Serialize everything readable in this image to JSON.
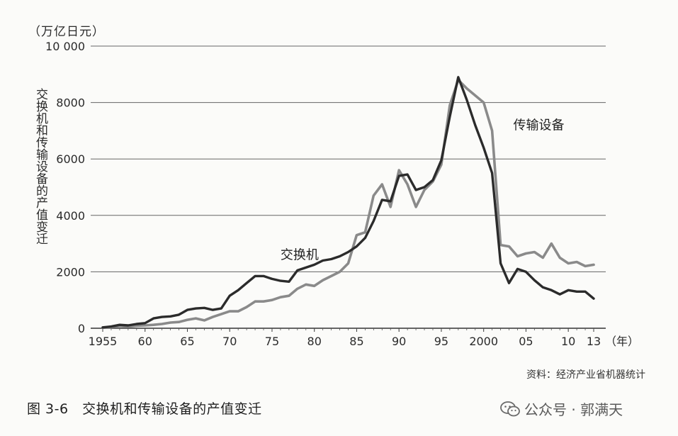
{
  "chart_data": {
    "type": "line",
    "title": "",
    "xlabel": "（年）",
    "ylabel": "交换机和传输设备的产值变迁",
    "unit": "（万亿日元）",
    "ylim": [
      0,
      10000
    ],
    "xlim": [
      1955,
      2013
    ],
    "grid": "horizontal",
    "yticks": [
      {
        "value": 0,
        "label": "0"
      },
      {
        "value": 2000,
        "label": "2000"
      },
      {
        "value": 4000,
        "label": "4000"
      },
      {
        "value": 6000,
        "label": "6000"
      },
      {
        "value": 8000,
        "label": "8000"
      },
      {
        "value": 10000,
        "label": "10 000"
      }
    ],
    "xticks": [
      {
        "value": 1955,
        "label": "1955"
      },
      {
        "value": 1960,
        "label": "60"
      },
      {
        "value": 1965,
        "label": "65"
      },
      {
        "value": 1970,
        "label": "70"
      },
      {
        "value": 1975,
        "label": "75"
      },
      {
        "value": 1980,
        "label": "80"
      },
      {
        "value": 1985,
        "label": "85"
      },
      {
        "value": 1990,
        "label": "90"
      },
      {
        "value": 1995,
        "label": "95"
      },
      {
        "value": 2000,
        "label": "2000"
      },
      {
        "value": 2005,
        "label": "05"
      },
      {
        "value": 2010,
        "label": "10"
      },
      {
        "value": 2013,
        "label": "13"
      }
    ],
    "series": [
      {
        "name": "交换机",
        "color": "#2b2b2b",
        "label_at": [
          1976,
          2450
        ],
        "x": [
          1955,
          1956,
          1957,
          1958,
          1959,
          1960,
          1961,
          1962,
          1963,
          1964,
          1965,
          1966,
          1967,
          1968,
          1969,
          1970,
          1971,
          1972,
          1973,
          1974,
          1975,
          1976,
          1977,
          1978,
          1979,
          1980,
          1981,
          1982,
          1983,
          1984,
          1985,
          1986,
          1987,
          1988,
          1989,
          1990,
          1991,
          1992,
          1993,
          1994,
          1995,
          1996,
          1997,
          1998,
          1999,
          2000,
          2001,
          2002,
          2003,
          2004,
          2005,
          2006,
          2007,
          2008,
          2009,
          2010,
          2011,
          2012,
          2013
        ],
        "y": [
          30,
          60,
          120,
          100,
          150,
          180,
          350,
          400,
          420,
          480,
          650,
          700,
          720,
          650,
          700,
          1150,
          1350,
          1600,
          1850,
          1850,
          1750,
          1680,
          1650,
          2050,
          2150,
          2250,
          2400,
          2450,
          2550,
          2700,
          2900,
          3200,
          3800,
          4550,
          4500,
          5400,
          5450,
          4900,
          5000,
          5250,
          5950,
          7500,
          8900,
          8100,
          7200,
          6400,
          5500,
          2300,
          1600,
          2100,
          2000,
          1700,
          1450,
          1350,
          1200,
          1350,
          1300,
          1300,
          1050
        ]
      },
      {
        "name": "传输设备",
        "color": "#8a8a8a",
        "label_at": [
          2003.5,
          7050
        ],
        "x": [
          1955,
          1956,
          1957,
          1958,
          1959,
          1960,
          1961,
          1962,
          1963,
          1964,
          1965,
          1966,
          1967,
          1968,
          1969,
          1970,
          1971,
          1972,
          1973,
          1974,
          1975,
          1976,
          1977,
          1978,
          1979,
          1980,
          1981,
          1982,
          1983,
          1984,
          1985,
          1986,
          1987,
          1988,
          1989,
          1990,
          1991,
          1992,
          1993,
          1994,
          1995,
          1996,
          1997,
          1998,
          1999,
          2000,
          2001,
          2002,
          2003,
          2004,
          2005,
          2006,
          2007,
          2008,
          2009,
          2010,
          2011,
          2012,
          2013
        ],
        "y": [
          20,
          40,
          80,
          60,
          90,
          100,
          120,
          150,
          200,
          220,
          300,
          350,
          280,
          400,
          500,
          600,
          600,
          750,
          950,
          950,
          1000,
          1100,
          1150,
          1400,
          1550,
          1500,
          1700,
          1850,
          2000,
          2300,
          3300,
          3400,
          4700,
          5100,
          4300,
          5600,
          5100,
          4300,
          4900,
          5200,
          5800,
          7900,
          8800,
          8500,
          8250,
          8000,
          7000,
          2950,
          2900,
          2550,
          2650,
          2700,
          2500,
          3000,
          2500,
          2300,
          2350,
          2200,
          2250
        ]
      }
    ]
  },
  "text": {
    "unit_label": "（万亿日元）",
    "ylabel": "交换机和传输设备的产值变迁",
    "source": "资料：经济产业省机器统计",
    "caption": "图 3-6　交换机和传输设备的产值变迁",
    "watermark": "公众号 · 郭满天"
  },
  "watermark_icon": "wechat-icon"
}
